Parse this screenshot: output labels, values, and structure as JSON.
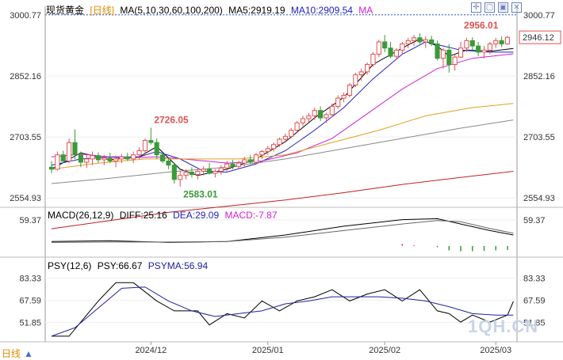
{
  "header": {
    "symbol": "现货黄金",
    "period": "[日线]",
    "ma_label": "MA(5,10,30,60,100,200)",
    "ma5": "MA5:2919.19",
    "ma10": "MA10:2909.54",
    "ma_extra": "MA"
  },
  "macd_header": {
    "label": "MACD(26,12,9)",
    "diff": "DIFF:25.16",
    "dea": "DEA:29.09",
    "macd": "MACD:-7.87"
  },
  "psy_header": {
    "label": "PSY(12,6)",
    "psy": "PSY:66.67",
    "psyma": "PSYMA:56.94"
  },
  "footer": {
    "period_label": "日线"
  },
  "watermark": "1QH.CN",
  "colors": {
    "up": "#e05252",
    "down": "#3a9a3a",
    "ma5": "#000000",
    "ma10": "#2020c0",
    "ma30": "#d020d0",
    "ma60": "#e0a020",
    "ma100": "#888888",
    "ma200": "#c02020",
    "dea": "#666666",
    "psyma": "#2020a0",
    "axis": "#333333"
  },
  "chart_data": [
    {
      "type": "candlestick",
      "price_ylim": [
        2540,
        3010
      ],
      "yticks": [
        3000.77,
        2852.16,
        2703.55,
        2554.93
      ],
      "xtick_labels": [
        "2024/12",
        "2025/01",
        "2025/02",
        "2025/03"
      ],
      "xtick_index": [
        17,
        37,
        57,
        76
      ],
      "current_price": 2946.12,
      "annotations": [
        {
          "label": "2956.01",
          "index": 70,
          "value": 2956.01
        },
        {
          "label": "2726.05",
          "index": 17,
          "value": 2726.05
        },
        {
          "label": "2583.01",
          "index": 22,
          "value": 2583.01
        }
      ],
      "candles": [
        [
          2630,
          2645,
          2615,
          2625
        ],
        [
          2625,
          2668,
          2622,
          2660
        ],
        [
          2660,
          2670,
          2640,
          2645
        ],
        [
          2645,
          2700,
          2640,
          2690
        ],
        [
          2690,
          2722,
          2650,
          2660
        ],
        [
          2660,
          2668,
          2630,
          2642
        ],
        [
          2642,
          2660,
          2628,
          2650
        ],
        [
          2650,
          2668,
          2635,
          2658
        ],
        [
          2658,
          2666,
          2640,
          2648
        ],
        [
          2648,
          2660,
          2635,
          2652
        ],
        [
          2652,
          2665,
          2640,
          2645
        ],
        [
          2645,
          2658,
          2630,
          2650
        ],
        [
          2650,
          2662,
          2640,
          2655
        ],
        [
          2655,
          2665,
          2645,
          2650
        ],
        [
          2650,
          2668,
          2640,
          2660
        ],
        [
          2660,
          2678,
          2650,
          2670
        ],
        [
          2670,
          2700,
          2660,
          2695
        ],
        [
          2695,
          2726,
          2685,
          2690
        ],
        [
          2690,
          2700,
          2650,
          2660
        ],
        [
          2660,
          2665,
          2640,
          2645
        ],
        [
          2645,
          2655,
          2625,
          2635
        ],
        [
          2635,
          2640,
          2590,
          2600
        ],
        [
          2600,
          2620,
          2583,
          2610
        ],
        [
          2610,
          2625,
          2600,
          2618
        ],
        [
          2618,
          2630,
          2605,
          2612
        ],
        [
          2612,
          2625,
          2600,
          2620
        ],
        [
          2620,
          2632,
          2610,
          2625
        ],
        [
          2625,
          2640,
          2612,
          2615
        ],
        [
          2615,
          2625,
          2605,
          2620
        ],
        [
          2620,
          2635,
          2612,
          2628
        ],
        [
          2628,
          2645,
          2620,
          2638
        ],
        [
          2638,
          2648,
          2625,
          2632
        ],
        [
          2632,
          2645,
          2625,
          2640
        ],
        [
          2640,
          2655,
          2632,
          2648
        ],
        [
          2648,
          2660,
          2638,
          2642
        ],
        [
          2642,
          2665,
          2638,
          2660
        ],
        [
          2660,
          2672,
          2650,
          2668
        ],
        [
          2668,
          2682,
          2660,
          2675
        ],
        [
          2675,
          2690,
          2668,
          2685
        ],
        [
          2685,
          2702,
          2680,
          2698
        ],
        [
          2698,
          2712,
          2690,
          2705
        ],
        [
          2705,
          2725,
          2700,
          2720
        ],
        [
          2720,
          2742,
          2715,
          2738
        ],
        [
          2738,
          2755,
          2730,
          2748
        ],
        [
          2748,
          2762,
          2740,
          2755
        ],
        [
          2755,
          2775,
          2745,
          2768
        ],
        [
          2768,
          2778,
          2742,
          2750
        ],
        [
          2750,
          2762,
          2738,
          2758
        ],
        [
          2758,
          2785,
          2752,
          2778
        ],
        [
          2778,
          2805,
          2772,
          2798
        ],
        [
          2798,
          2812,
          2788,
          2805
        ],
        [
          2805,
          2835,
          2800,
          2830
        ],
        [
          2830,
          2860,
          2825,
          2855
        ],
        [
          2855,
          2870,
          2840,
          2862
        ],
        [
          2862,
          2885,
          2855,
          2880
        ],
        [
          2880,
          2910,
          2875,
          2905
        ],
        [
          2905,
          2940,
          2898,
          2935
        ],
        [
          2935,
          2952,
          2910,
          2920
        ],
        [
          2920,
          2935,
          2895,
          2900
        ],
        [
          2900,
          2920,
          2892,
          2915
        ],
        [
          2915,
          2935,
          2905,
          2930
        ],
        [
          2930,
          2945,
          2920,
          2938
        ],
        [
          2938,
          2952,
          2925,
          2945
        ],
        [
          2945,
          2956,
          2930,
          2935
        ],
        [
          2935,
          2948,
          2920,
          2940
        ],
        [
          2940,
          2950,
          2925,
          2930
        ],
        [
          2930,
          2938,
          2890,
          2895
        ],
        [
          2895,
          2920,
          2870,
          2915
        ],
        [
          2915,
          2930,
          2860,
          2880
        ],
        [
          2880,
          2905,
          2865,
          2898
        ],
        [
          2898,
          2935,
          2895,
          2920
        ],
        [
          2920,
          2945,
          2910,
          2938
        ],
        [
          2938,
          2946,
          2915,
          2925
        ],
        [
          2925,
          2935,
          2900,
          2910
        ],
        [
          2910,
          2925,
          2895,
          2915
        ],
        [
          2915,
          2935,
          2905,
          2930
        ],
        [
          2930,
          2945,
          2920,
          2938
        ],
        [
          2938,
          2948,
          2922,
          2930
        ],
        [
          2930,
          2950,
          2928,
          2946
        ]
      ],
      "ma_series": [
        {
          "name": "MA5",
          "points": [
            [
              0,
              2625
            ],
            [
              5,
              2665
            ],
            [
              10,
              2648
            ],
            [
              15,
              2655
            ],
            [
              18,
              2680
            ],
            [
              22,
              2625
            ],
            [
              25,
              2610
            ],
            [
              30,
              2625
            ],
            [
              35,
              2650
            ],
            [
              40,
              2692
            ],
            [
              45,
              2750
            ],
            [
              50,
              2800
            ],
            [
              55,
              2880
            ],
            [
              60,
              2920
            ],
            [
              63,
              2942
            ],
            [
              66,
              2925
            ],
            [
              68,
              2900
            ],
            [
              71,
              2915
            ],
            [
              75,
              2912
            ],
            [
              79,
              2919
            ]
          ]
        },
        {
          "name": "MA10",
          "points": [
            [
              0,
              2635
            ],
            [
              5,
              2650
            ],
            [
              10,
              2655
            ],
            [
              15,
              2655
            ],
            [
              18,
              2668
            ],
            [
              22,
              2650
            ],
            [
              26,
              2620
            ],
            [
              30,
              2618
            ],
            [
              35,
              2638
            ],
            [
              40,
              2670
            ],
            [
              45,
              2720
            ],
            [
              50,
              2775
            ],
            [
              55,
              2845
            ],
            [
              60,
              2905
            ],
            [
              64,
              2935
            ],
            [
              67,
              2925
            ],
            [
              70,
              2915
            ],
            [
              75,
              2910
            ],
            [
              79,
              2910
            ]
          ]
        },
        {
          "name": "MA30",
          "points": [
            [
              0,
              2655
            ],
            [
              5,
              2662
            ],
            [
              12,
              2652
            ],
            [
              18,
              2655
            ],
            [
              24,
              2648
            ],
            [
              30,
              2640
            ],
            [
              36,
              2645
            ],
            [
              42,
              2665
            ],
            [
              48,
              2700
            ],
            [
              54,
              2760
            ],
            [
              60,
              2820
            ],
            [
              66,
              2870
            ],
            [
              72,
              2895
            ],
            [
              79,
              2906
            ]
          ]
        },
        {
          "name": "MA60",
          "points": [
            [
              0,
              2625
            ],
            [
              8,
              2640
            ],
            [
              16,
              2650
            ],
            [
              24,
              2650
            ],
            [
              32,
              2650
            ],
            [
              40,
              2660
            ],
            [
              48,
              2690
            ],
            [
              56,
              2720
            ],
            [
              64,
              2755
            ],
            [
              72,
              2775
            ],
            [
              79,
              2785
            ]
          ]
        },
        {
          "name": "MA100",
          "points": [
            [
              0,
              2590
            ],
            [
              10,
              2603
            ],
            [
              20,
              2618
            ],
            [
              30,
              2630
            ],
            [
              40,
              2650
            ],
            [
              50,
              2675
            ],
            [
              60,
              2700
            ],
            [
              70,
              2725
            ],
            [
              79,
              2745
            ]
          ]
        },
        {
          "name": "MA200",
          "points": [
            [
              0,
              2480
            ],
            [
              10,
              2500
            ],
            [
              20,
              2520
            ],
            [
              30,
              2535
            ],
            [
              40,
              2550
            ],
            [
              50,
              2568
            ],
            [
              60,
              2588
            ],
            [
              70,
              2605
            ],
            [
              79,
              2620
            ]
          ]
        }
      ]
    },
    {
      "type": "line",
      "name": "MACD",
      "yticks": [
        59.37
      ],
      "ylim": [
        -20,
        70
      ],
      "series": [
        {
          "name": "DIFF",
          "points": [
            [
              0,
              10
            ],
            [
              10,
              12
            ],
            [
              20,
              8
            ],
            [
              30,
              10
            ],
            [
              40,
              25
            ],
            [
              50,
              45
            ],
            [
              60,
              60
            ],
            [
              66,
              62
            ],
            [
              70,
              50
            ],
            [
              75,
              35
            ],
            [
              79,
              25
            ]
          ]
        },
        {
          "name": "DEA",
          "points": [
            [
              0,
              8
            ],
            [
              10,
              9
            ],
            [
              20,
              9
            ],
            [
              30,
              10
            ],
            [
              40,
              20
            ],
            [
              50,
              35
            ],
            [
              60,
              50
            ],
            [
              66,
              58
            ],
            [
              70,
              55
            ],
            [
              75,
              40
            ],
            [
              79,
              29
            ]
          ]
        }
      ],
      "bars_macd": [
        [
          60,
          5
        ],
        [
          62,
          2
        ],
        [
          64,
          0
        ],
        [
          66,
          -3
        ],
        [
          68,
          -10
        ],
        [
          70,
          -12
        ],
        [
          72,
          -12
        ],
        [
          74,
          -11
        ],
        [
          76,
          -10
        ],
        [
          78,
          -9
        ]
      ]
    },
    {
      "type": "line",
      "name": "PSY",
      "yticks": [
        83.33,
        67.59,
        51.85
      ],
      "ylim": [
        38,
        92
      ],
      "series": [
        {
          "name": "PSY",
          "points": [
            [
              0,
              42
            ],
            [
              3,
              42
            ],
            [
              5,
              52
            ],
            [
              8,
              67
            ],
            [
              11,
              80
            ],
            [
              14,
              80
            ],
            [
              18,
              67
            ],
            [
              21,
              60
            ],
            [
              25,
              60
            ],
            [
              27,
              50
            ],
            [
              30,
              58
            ],
            [
              33,
              55
            ],
            [
              36,
              67
            ],
            [
              39,
              60
            ],
            [
              42,
              67
            ],
            [
              45,
              70
            ],
            [
              48,
              75
            ],
            [
              51,
              67
            ],
            [
              54,
              72
            ],
            [
              57,
              75
            ],
            [
              60,
              67
            ],
            [
              63,
              75
            ],
            [
              66,
              60
            ],
            [
              68,
              58
            ],
            [
              70,
              52
            ],
            [
              72,
              57
            ],
            [
              75,
              52
            ],
            [
              78,
              57
            ],
            [
              79,
              66.67
            ]
          ]
        },
        {
          "name": "PSYMA",
          "points": [
            [
              0,
              42
            ],
            [
              4,
              48
            ],
            [
              8,
              62
            ],
            [
              12,
              76
            ],
            [
              16,
              77
            ],
            [
              20,
              67
            ],
            [
              24,
              60
            ],
            [
              28,
              56
            ],
            [
              32,
              58
            ],
            [
              36,
              60
            ],
            [
              40,
              65
            ],
            [
              44,
              67
            ],
            [
              48,
              70
            ],
            [
              52,
              70
            ],
            [
              56,
              70
            ],
            [
              60,
              69
            ],
            [
              64,
              67
            ],
            [
              68,
              63
            ],
            [
              72,
              58
            ],
            [
              76,
              57
            ],
            [
              79,
              56.94
            ]
          ]
        }
      ]
    }
  ]
}
